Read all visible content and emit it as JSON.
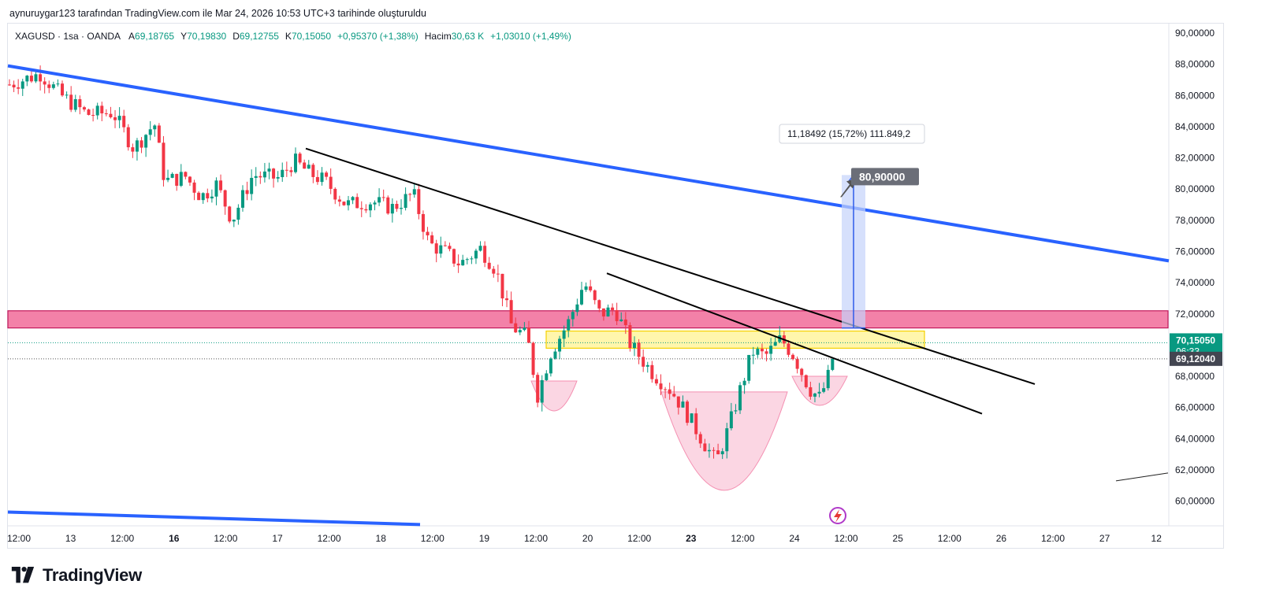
{
  "caption": "aynuruygar123 tarafından TradingView.com ile Mar 24, 2026 10:53 UTC+3 tarihinde oluşturuldu",
  "legend": {
    "symbol": "XAGUSD · 1sa · OANDA",
    "open_label": "A",
    "open": "69,18765",
    "high_label": "Y",
    "high": "70,19830",
    "low_label": "D",
    "low": "69,12755",
    "close_label": "K",
    "close": "70,15050",
    "change": "+0,95370 (+1,38%)",
    "volume_label": "Hacim",
    "volume": "30,63 K",
    "volume_change": "+1,03010 (+1,49%)"
  },
  "brand": "TradingView",
  "colors": {
    "up": "#089981",
    "down": "#f23645",
    "channel_line": "#2962ff",
    "trend_line": "#000000",
    "resistance_zone": "#f06292",
    "neckline_zone": "#fff59d",
    "cup_fill": "#f8bbd0",
    "target": "#5b7cf0"
  },
  "chart_data": {
    "type": "candlestick",
    "symbol": "XAGUSD",
    "interval": "1sa",
    "ylim": [
      59,
      91
    ],
    "y_ticks": [
      "90,00000",
      "88,00000",
      "86,00000",
      "84,00000",
      "82,00000",
      "80,00000",
      "78,00000",
      "76,00000",
      "74,00000",
      "72,00000",
      "70,00000",
      "68,00000",
      "66,00000",
      "64,00000",
      "62,00000",
      "60,00000"
    ],
    "x_ticks": [
      "12:00",
      "13",
      "12:00",
      "16",
      "12:00",
      "17",
      "12:00",
      "18",
      "12:00",
      "19",
      "12:00",
      "20",
      "12:00",
      "23",
      "12:00",
      "24",
      "12:00",
      "25",
      "12:00",
      "26",
      "12:00",
      "27",
      "12"
    ],
    "bold_x_ticks": [
      "16",
      "23"
    ],
    "price_labels": [
      {
        "value": 70.1505,
        "text": "70,15050",
        "subtext": "06:33",
        "color": "#089981"
      },
      {
        "value": 69.1204,
        "text": "69,12040",
        "color": "#434651"
      }
    ],
    "close_path": [
      {
        "t": 0,
        "p": 86.7
      },
      {
        "t": 0.6,
        "p": 87.4
      },
      {
        "t": 1.0,
        "p": 86.0
      },
      {
        "t": 1.5,
        "p": 84.8
      },
      {
        "t": 2.0,
        "p": 84.9
      },
      {
        "t": 2.4,
        "p": 82.6
      },
      {
        "t": 2.8,
        "p": 84.2
      },
      {
        "t": 3.0,
        "p": 80.5
      },
      {
        "t": 3.4,
        "p": 80.8
      },
      {
        "t": 3.7,
        "p": 79.5
      },
      {
        "t": 4.0,
        "p": 80.3
      },
      {
        "t": 4.3,
        "p": 78.0
      },
      {
        "t": 4.7,
        "p": 80.9
      },
      {
        "t": 5.2,
        "p": 80.7
      },
      {
        "t": 5.5,
        "p": 81.8
      },
      {
        "t": 5.8,
        "p": 81.0
      },
      {
        "t": 6.1,
        "p": 80.5
      },
      {
        "t": 6.5,
        "p": 79.0
      },
      {
        "t": 7.0,
        "p": 79.2
      },
      {
        "t": 7.4,
        "p": 78.8
      },
      {
        "t": 7.8,
        "p": 79.7
      },
      {
        "t": 8.1,
        "p": 76.5
      },
      {
        "t": 8.4,
        "p": 76.0
      },
      {
        "t": 8.7,
        "p": 75.2
      },
      {
        "t": 9.1,
        "p": 76.2
      },
      {
        "t": 9.4,
        "p": 74.8
      },
      {
        "t": 9.7,
        "p": 71.2
      },
      {
        "t": 10.0,
        "p": 70.5
      },
      {
        "t": 10.2,
        "p": 66.8
      },
      {
        "t": 10.45,
        "p": 69.5
      },
      {
        "t": 10.8,
        "p": 71.5
      },
      {
        "t": 11.1,
        "p": 74.0
      },
      {
        "t": 11.4,
        "p": 72.0
      },
      {
        "t": 11.7,
        "p": 72.3
      },
      {
        "t": 12.0,
        "p": 70.0
      },
      {
        "t": 12.4,
        "p": 68.3
      },
      {
        "t": 12.8,
        "p": 67.0
      },
      {
        "t": 13.1,
        "p": 65.5
      },
      {
        "t": 13.4,
        "p": 63.8
      },
      {
        "t": 13.65,
        "p": 62.5
      },
      {
        "t": 13.9,
        "p": 64.8
      },
      {
        "t": 14.1,
        "p": 67.0
      },
      {
        "t": 14.35,
        "p": 69.6
      },
      {
        "t": 14.6,
        "p": 69.3
      },
      {
        "t": 14.9,
        "p": 70.4
      },
      {
        "t": 15.15,
        "p": 69.3
      },
      {
        "t": 15.45,
        "p": 67.2
      },
      {
        "t": 15.65,
        "p": 66.6
      },
      {
        "t": 15.85,
        "p": 68.3
      },
      {
        "t": 15.95,
        "p": 70.15
      }
    ],
    "annotations": {
      "measure_label": "11,18492 (15,72%) 111.849,2",
      "target_label": "80,90000",
      "target_price": 80.9,
      "measure_from": 71.1
    }
  }
}
